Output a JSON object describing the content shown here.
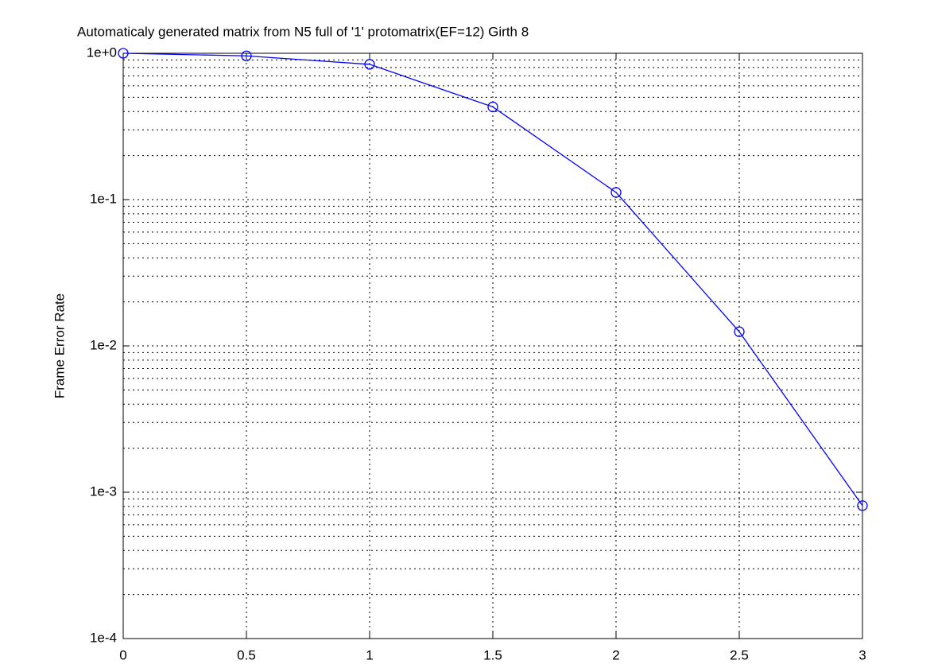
{
  "chart_data": {
    "type": "line",
    "title": "Automaticaly generated matrix from N5 full of '1' protomatrix(EF=12) Girth 8",
    "y_label": "Frame Error Rate",
    "x": [
      0,
      0.5,
      1,
      1.5,
      2,
      2.5,
      3
    ],
    "series": [
      {
        "color": "#0000ff",
        "values": [
          1.0,
          0.96,
          0.84,
          0.43,
          0.112,
          0.0125,
          0.00081
        ]
      }
    ],
    "xlim": [
      0,
      3
    ],
    "xticks": [
      0,
      0.5,
      1,
      1.5,
      2,
      2.5,
      3
    ],
    "ylim": [
      0.0001,
      1
    ],
    "log_y": true,
    "yticks": [
      {
        "value": 0.0001,
        "label": "1e-4"
      },
      {
        "value": 0.001,
        "label": "1e-3"
      },
      {
        "value": 0.01,
        "label": "1e-2"
      },
      {
        "value": 0.1,
        "label": "1e-1"
      },
      {
        "value": 1,
        "label": "1e+0"
      }
    ],
    "grid": true,
    "minor_grid": true,
    "marker": "circle"
  }
}
